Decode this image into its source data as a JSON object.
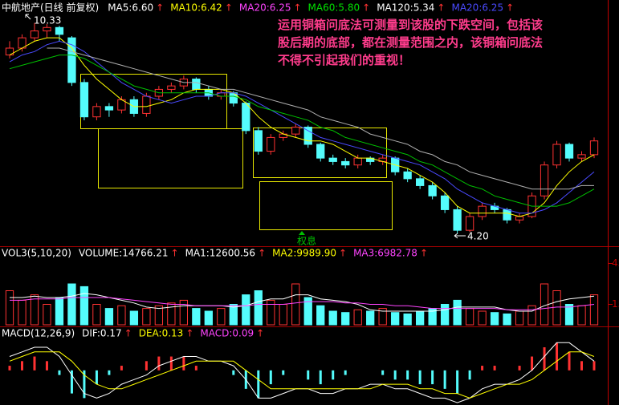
{
  "indicator_arrow": "↑",
  "annotation": [
    "运用铜箱问底法可测量到该股的下跌空间，包括该",
    "股后期的底部，都在测量范围之内，该铜箱问底法",
    "不得不引起我们的重视！"
  ],
  "high_label": "10.33",
  "low_label": "4.20",
  "event_label": "权息",
  "chart_data": [
    {
      "type": "candlestick",
      "header": [
        {
          "text": "中航地产(日线 前复权)",
          "color": "#ffffff"
        },
        {
          "text": "MA5:6.60",
          "color": "#ffffff"
        },
        {
          "text": "MA10:6.42",
          "color": "#ffff00"
        },
        {
          "text": "MA20:6.25",
          "color": "#ff44ff"
        },
        {
          "text": "MA60:5.80",
          "color": "#00e000"
        },
        {
          "text": "MA120:5.34",
          "color": "#ffffff"
        },
        {
          "text": "MA20:6.25",
          "color": "#4a4aff"
        }
      ],
      "up_color": "#ff3232",
      "down_color": "#54fcfc",
      "ylim": [
        4.0,
        11.0
      ],
      "open": [
        9.4,
        9.6,
        9.9,
        10.1,
        10.2,
        9.9,
        8.6,
        7.6,
        7.9,
        7.8,
        8.1,
        7.7,
        8.2,
        8.4,
        8.5,
        8.7,
        8.4,
        8.2,
        8.3,
        8.0,
        7.2,
        6.6,
        7.0,
        7.1,
        7.3,
        6.8,
        6.4,
        6.3,
        6.2,
        6.4,
        6.3,
        6.4,
        6.0,
        5.8,
        5.6,
        5.3,
        4.9,
        4.3,
        4.7,
        5.0,
        4.9,
        4.6,
        4.7,
        5.3,
        6.2,
        6.8,
        6.4,
        6.5
      ],
      "high": [
        9.8,
        10.0,
        10.33,
        10.3,
        10.25,
        9.95,
        8.7,
        8.0,
        8.0,
        8.2,
        8.2,
        8.3,
        8.5,
        8.6,
        8.8,
        8.75,
        8.5,
        8.4,
        8.35,
        8.05,
        7.3,
        7.1,
        7.2,
        7.4,
        7.35,
        6.85,
        6.5,
        6.4,
        6.5,
        6.45,
        6.5,
        6.45,
        6.1,
        5.9,
        5.7,
        5.4,
        5.0,
        4.8,
        5.1,
        5.1,
        4.95,
        4.8,
        5.4,
        6.3,
        6.9,
        6.85,
        6.6,
        7.0
      ],
      "low": [
        9.3,
        9.5,
        9.8,
        9.9,
        9.8,
        8.5,
        7.5,
        7.5,
        7.6,
        7.7,
        7.6,
        7.6,
        8.1,
        8.3,
        8.4,
        8.3,
        8.1,
        8.1,
        7.9,
        7.1,
        6.5,
        6.5,
        6.9,
        7.0,
        6.7,
        6.3,
        6.2,
        6.1,
        6.1,
        6.2,
        6.2,
        5.9,
        5.7,
        5.5,
        5.2,
        4.8,
        4.2,
        4.25,
        4.6,
        4.8,
        4.5,
        4.5,
        4.65,
        5.2,
        6.1,
        6.3,
        6.3,
        6.4
      ],
      "close": [
        9.6,
        9.9,
        10.1,
        10.2,
        10.0,
        8.6,
        7.6,
        7.9,
        7.8,
        8.1,
        7.7,
        8.2,
        8.4,
        8.5,
        8.7,
        8.4,
        8.2,
        8.3,
        8.0,
        7.2,
        6.6,
        7.0,
        7.1,
        7.3,
        6.8,
        6.4,
        6.3,
        6.2,
        6.4,
        6.3,
        6.4,
        6.0,
        5.8,
        5.6,
        5.3,
        4.9,
        4.3,
        4.7,
        5.0,
        4.9,
        4.6,
        4.7,
        5.3,
        6.2,
        6.8,
        6.4,
        6.5,
        6.9
      ],
      "series": [
        {
          "color": "#ffff00",
          "values": [
            9.4,
            9.6,
            9.8,
            9.9,
            9.9,
            9.6,
            9.1,
            8.7,
            8.4,
            8.1,
            7.9,
            7.9,
            8.0,
            8.1,
            8.3,
            8.4,
            8.4,
            8.4,
            8.3,
            8.0,
            7.6,
            7.3,
            7.1,
            7.0,
            6.9,
            6.9,
            6.8,
            6.6,
            6.4,
            6.4,
            6.3,
            6.2,
            6.1,
            5.9,
            5.7,
            5.4,
            5.0,
            4.8,
            4.8,
            4.8,
            4.8,
            4.7,
            4.8,
            5.1,
            5.6,
            6.0,
            6.3,
            6.5
          ]
        },
        {
          "color": "#4a4aff",
          "values": [
            9.2,
            9.4,
            9.5,
            9.7,
            9.8,
            9.7,
            9.5,
            9.2,
            8.9,
            8.6,
            8.4,
            8.2,
            8.1,
            8.0,
            8.1,
            8.2,
            8.2,
            8.3,
            8.3,
            8.2,
            8.0,
            7.8,
            7.6,
            7.4,
            7.2,
            7.0,
            6.9,
            6.8,
            6.7,
            6.6,
            6.5,
            6.4,
            6.3,
            6.2,
            6.0,
            5.8,
            5.5,
            5.3,
            5.1,
            5.0,
            4.9,
            4.8,
            4.8,
            4.9,
            5.1,
            5.4,
            5.7,
            6.0
          ]
        },
        {
          "color": "#00c000",
          "values": [
            9.0,
            9.1,
            9.2,
            9.3,
            9.4,
            9.4,
            9.3,
            9.1,
            8.9,
            8.7,
            8.5,
            8.4,
            8.3,
            8.3,
            8.3,
            8.3,
            8.3,
            8.2,
            8.2,
            8.1,
            7.9,
            7.8,
            7.7,
            7.6,
            7.5,
            7.3,
            7.2,
            7.0,
            6.9,
            6.8,
            6.7,
            6.6,
            6.5,
            6.3,
            6.2,
            6.0,
            5.8,
            5.6,
            5.5,
            5.3,
            5.2,
            5.1,
            5.0,
            5.0,
            5.0,
            5.1,
            5.3,
            5.5
          ]
        },
        {
          "color": "#b0b0b0",
          "values": [
            null,
            null,
            null,
            9.6,
            9.6,
            9.5,
            9.4,
            9.3,
            9.2,
            9.1,
            9.0,
            8.9,
            8.8,
            8.7,
            8.6,
            8.6,
            8.5,
            8.4,
            8.4,
            8.3,
            8.2,
            8.1,
            8.0,
            7.9,
            7.8,
            7.6,
            7.5,
            7.4,
            7.3,
            7.1,
            7.0,
            6.9,
            6.8,
            6.6,
            6.5,
            6.3,
            6.2,
            6.0,
            5.9,
            5.8,
            5.7,
            5.6,
            5.5,
            5.5,
            5.5,
            5.5,
            5.6,
            5.6
          ]
        }
      ]
    },
    {
      "type": "bar",
      "header": [
        {
          "text": "VOL3(5,10,20)",
          "color": "#ffffff"
        },
        {
          "text": "VOLUME:14766.21",
          "color": "#ffffff"
        },
        {
          "text": "MA1:12600.56",
          "color": "#ffffff"
        },
        {
          "text": "MA2:9989.90",
          "color": "#ffff00"
        },
        {
          "text": "MA3:6982.78",
          "color": "#ff44ff"
        }
      ],
      "ylim": [
        0,
        50
      ],
      "yticks": [
        15,
        45
      ],
      "values": [
        25,
        18,
        22,
        15,
        20,
        30,
        28,
        15,
        12,
        14,
        10,
        12,
        14,
        16,
        18,
        12,
        10,
        12,
        15,
        22,
        25,
        18,
        15,
        30,
        20,
        14,
        10,
        9,
        11,
        10,
        12,
        9,
        8,
        10,
        12,
        15,
        18,
        12,
        10,
        9,
        8,
        10,
        14,
        30,
        25,
        15,
        14,
        22
      ],
      "series": [
        {
          "color": "#ffffff",
          "values": [
            20,
            20,
            21,
            20,
            20,
            21,
            23,
            22,
            20,
            18,
            16,
            13,
            12,
            13,
            14,
            14,
            14,
            14,
            13,
            14,
            17,
            19,
            19,
            22,
            22,
            19,
            18,
            17,
            15,
            11,
            10,
            10,
            10,
            10,
            10,
            11,
            13,
            13,
            13,
            13,
            11,
            10,
            10,
            14,
            17,
            19,
            20,
            21
          ]
        },
        {
          "color": "#ff44ff",
          "values": [
            18,
            18,
            19,
            19,
            19,
            20,
            20,
            20,
            20,
            19,
            18,
            17,
            16,
            15,
            15,
            14,
            14,
            14,
            14,
            14,
            15,
            15,
            15,
            16,
            17,
            17,
            17,
            16,
            16,
            15,
            15,
            14,
            14,
            13,
            12,
            12,
            12,
            12,
            12,
            12,
            11,
            11,
            11,
            12,
            13,
            13,
            14,
            15
          ]
        }
      ]
    },
    {
      "type": "macd",
      "header": [
        {
          "text": "MACD(12,26,9)",
          "color": "#ffffff"
        },
        {
          "text": "DIF:0.17",
          "color": "#ffffff"
        },
        {
          "text": "DEA:0.13",
          "color": "#ffff00"
        },
        {
          "text": "MACD:0.09",
          "color": "#ff44ff"
        }
      ],
      "ylim": [
        -0.75,
        0.9
      ],
      "values": [
        0.1,
        0.2,
        0.3,
        0.2,
        -0.1,
        -0.5,
        -0.6,
        -0.3,
        -0.1,
        0.1,
        0.0,
        0.2,
        0.3,
        0.3,
        0.3,
        0.1,
        0.0,
        0.0,
        -0.1,
        -0.4,
        -0.6,
        -0.3,
        -0.1,
        0.0,
        -0.2,
        -0.3,
        -0.2,
        -0.1,
        0.0,
        0.0,
        -0.1,
        -0.2,
        -0.2,
        -0.3,
        -0.3,
        -0.4,
        -0.5,
        -0.2,
        0.1,
        0.1,
        0.0,
        0.1,
        0.3,
        0.5,
        0.6,
        0.4,
        0.2,
        0.2
      ],
      "series": [
        {
          "color": "#ffffff",
          "values": [
            0.3,
            0.4,
            0.5,
            0.5,
            0.3,
            -0.1,
            -0.5,
            -0.6,
            -0.5,
            -0.3,
            -0.2,
            -0.1,
            0.1,
            0.2,
            0.3,
            0.3,
            0.2,
            0.2,
            0.1,
            -0.2,
            -0.6,
            -0.6,
            -0.5,
            -0.4,
            -0.4,
            -0.5,
            -0.5,
            -0.4,
            -0.4,
            -0.3,
            -0.3,
            -0.4,
            -0.4,
            -0.5,
            -0.6,
            -0.6,
            -0.7,
            -0.6,
            -0.4,
            -0.3,
            -0.3,
            -0.2,
            0.0,
            0.3,
            0.6,
            0.6,
            0.4,
            0.2
          ]
        },
        {
          "color": "#ffff00",
          "values": [
            0.2,
            0.3,
            0.4,
            0.4,
            0.4,
            0.2,
            -0.1,
            -0.3,
            -0.4,
            -0.4,
            -0.3,
            -0.2,
            -0.1,
            0.0,
            0.1,
            0.2,
            0.2,
            0.2,
            0.2,
            0.0,
            -0.2,
            -0.4,
            -0.4,
            -0.4,
            -0.4,
            -0.4,
            -0.4,
            -0.4,
            -0.4,
            -0.4,
            -0.3,
            -0.3,
            -0.3,
            -0.4,
            -0.4,
            -0.5,
            -0.5,
            -0.6,
            -0.5,
            -0.4,
            -0.3,
            -0.3,
            -0.2,
            0.0,
            0.2,
            0.4,
            0.4,
            0.3
          ]
        }
      ]
    }
  ]
}
